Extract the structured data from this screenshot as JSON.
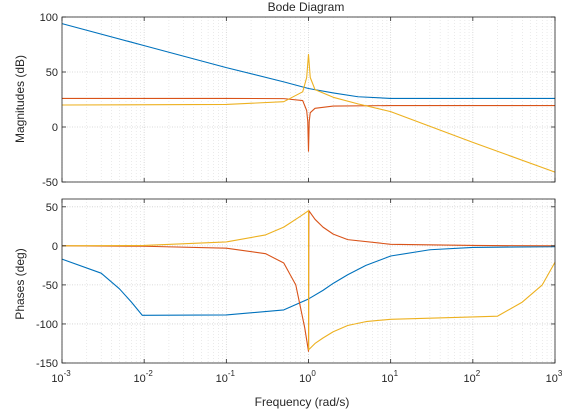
{
  "chart_data": {
    "type": "line",
    "title": "Bode Diagram",
    "xlabel": "Frequency (rad/s)",
    "xscale": "log",
    "xlim": [
      0.001,
      1000
    ],
    "x_ticks": [
      {
        "base": "10",
        "exp": "-3"
      },
      {
        "base": "10",
        "exp": "-2"
      },
      {
        "base": "10",
        "exp": "-1"
      },
      {
        "base": "10",
        "exp": "0"
      },
      {
        "base": "10",
        "exp": "1"
      },
      {
        "base": "10",
        "exp": "2"
      },
      {
        "base": "10",
        "exp": "3"
      }
    ],
    "grid": true,
    "colors": [
      "#0072BD",
      "#D95319",
      "#EDB120"
    ],
    "panels": [
      {
        "name": "magnitude",
        "ylabel": "Magnitudes (dB)",
        "ylim": [
          -50,
          100
        ],
        "yticks": [
          -50,
          0,
          50,
          100
        ],
        "series": [
          {
            "values": [
              [
                0.001,
                94
              ],
              [
                0.01,
                74
              ],
              [
                0.1,
                54
              ],
              [
                0.5,
                41
              ],
              [
                1,
                35
              ],
              [
                2,
                31
              ],
              [
                4,
                27.5
              ],
              [
                10,
                26
              ],
              [
                100,
                26
              ],
              [
                1000,
                26
              ]
            ]
          },
          {
            "values": [
              [
                0.001,
                26
              ],
              [
                0.1,
                26
              ],
              [
                0.5,
                25.8
              ],
              [
                0.85,
                24
              ],
              [
                0.95,
                15
              ],
              [
                0.98,
                5
              ],
              [
                1,
                -22
              ],
              [
                1.02,
                5
              ],
              [
                1.05,
                13
              ],
              [
                1.2,
                17
              ],
              [
                2,
                19
              ],
              [
                10,
                19.5
              ],
              [
                1000,
                19.5
              ]
            ]
          },
          {
            "values": [
              [
                0.001,
                20
              ],
              [
                0.1,
                20.5
              ],
              [
                0.5,
                23
              ],
              [
                0.85,
                32
              ],
              [
                0.95,
                45
              ],
              [
                1,
                66
              ],
              [
                1.05,
                45
              ],
              [
                1.2,
                34
              ],
              [
                2,
                27
              ],
              [
                4,
                21
              ],
              [
                10,
                14
              ],
              [
                100,
                -14
              ],
              [
                1000,
                -41
              ]
            ]
          }
        ]
      },
      {
        "name": "phase",
        "ylabel": "Phases (deg)",
        "ylim": [
          -150,
          60
        ],
        "yticks": [
          -150,
          -100,
          -50,
          0,
          50
        ],
        "series": [
          {
            "values": [
              [
                0.001,
                -17
              ],
              [
                0.003,
                -35
              ],
              [
                0.005,
                -55
              ],
              [
                0.007,
                -72
              ],
              [
                0.0095,
                -89
              ],
              [
                0.1,
                -88.5
              ],
              [
                0.5,
                -82
              ],
              [
                1,
                -68
              ],
              [
                1.5,
                -57
              ],
              [
                2,
                -48
              ],
              [
                3,
                -37
              ],
              [
                5,
                -25
              ],
              [
                10,
                -13
              ],
              [
                30,
                -5
              ],
              [
                100,
                -2
              ],
              [
                1000,
                -1
              ]
            ]
          },
          {
            "values": [
              [
                0.001,
                0
              ],
              [
                0.01,
                -0.5
              ],
              [
                0.1,
                -3
              ],
              [
                0.3,
                -10
              ],
              [
                0.5,
                -22
              ],
              [
                0.7,
                -50
              ],
              [
                0.9,
                -105
              ],
              [
                1,
                -135
              ],
              [
                1.01,
                45
              ],
              [
                1.2,
                34
              ],
              [
                1.5,
                24
              ],
              [
                2,
                15
              ],
              [
                3,
                8
              ],
              [
                10,
                2
              ],
              [
                100,
                0.5
              ],
              [
                1000,
                0
              ]
            ]
          },
          {
            "values": [
              [
                0.001,
                0
              ],
              [
                0.01,
                0.5
              ],
              [
                0.1,
                5
              ],
              [
                0.3,
                14
              ],
              [
                0.5,
                24
              ],
              [
                0.8,
                38
              ],
              [
                1,
                45
              ],
              [
                1.005,
                -133
              ],
              [
                1.2,
                -125
              ],
              [
                1.5,
                -118
              ],
              [
                2,
                -110
              ],
              [
                3,
                -102
              ],
              [
                5,
                -97
              ],
              [
                10,
                -94
              ],
              [
                100,
                -91
              ],
              [
                200,
                -90
              ],
              [
                400,
                -72
              ],
              [
                700,
                -50
              ],
              [
                1000,
                -21
              ]
            ]
          }
        ]
      }
    ]
  }
}
